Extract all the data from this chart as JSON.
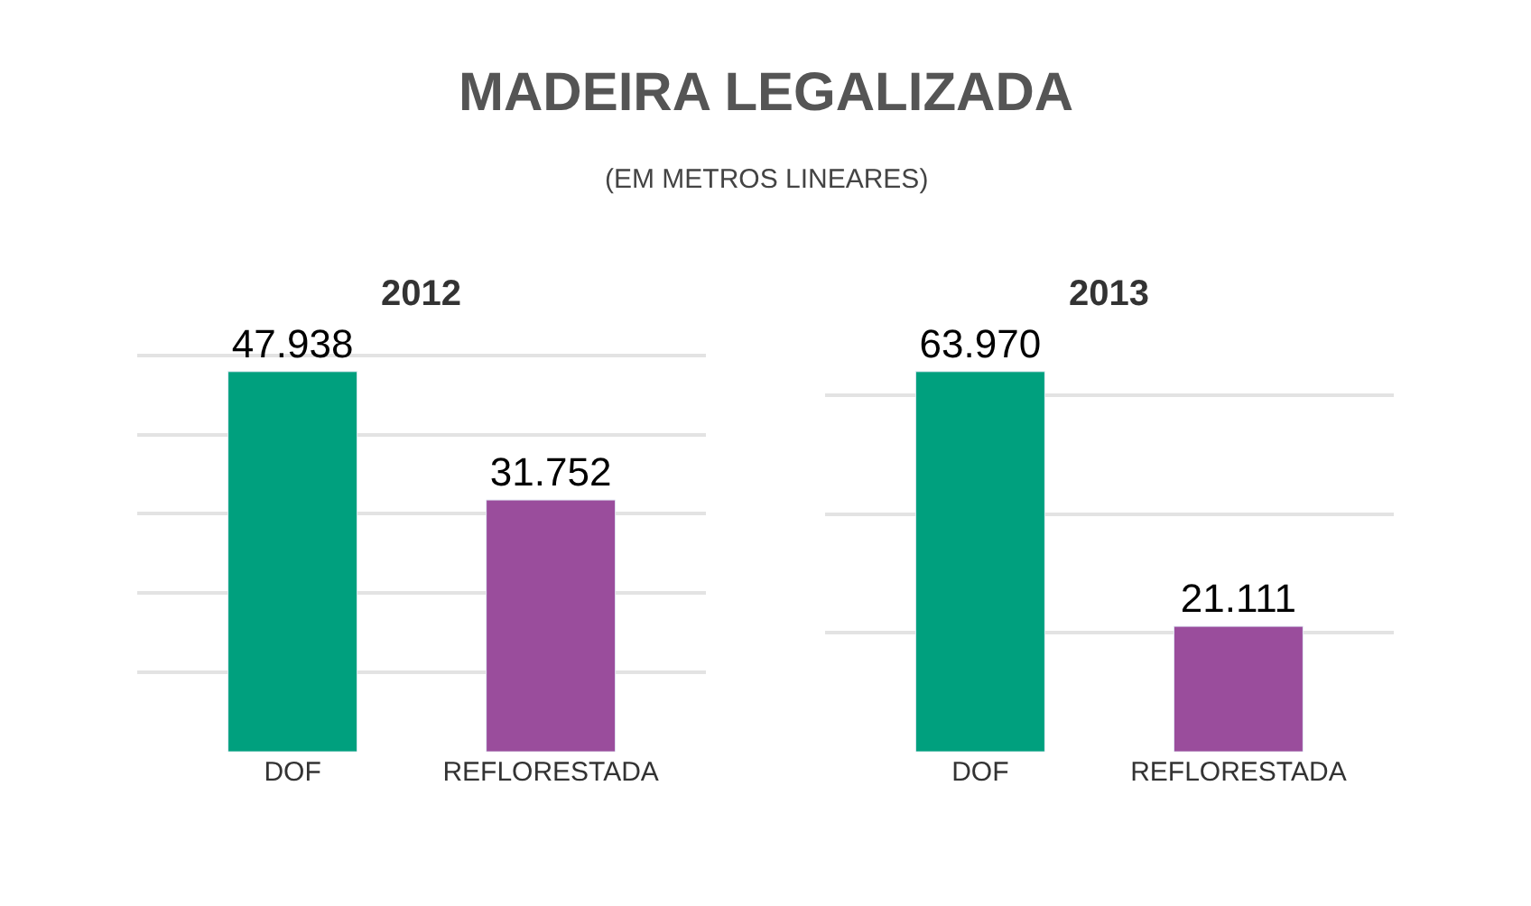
{
  "chart_data": [
    {
      "type": "bar",
      "title": "2012",
      "annotations": [
        "MADEIRA LEGALIZADA",
        "(EM METROS LINEARES)"
      ],
      "categories": [
        "DOF",
        "REFLORESTADA"
      ],
      "values": [
        47938,
        31752
      ],
      "colors": [
        "#00a07e",
        "#9a4d9c"
      ],
      "value_labels": [
        "47.938",
        "31.752"
      ],
      "grid": "y",
      "tick_labels": "x"
    },
    {
      "type": "bar",
      "title": "2013",
      "categories": [
        "DOF",
        "REFLORESTADA"
      ],
      "values": [
        63970,
        21111
      ],
      "colors": [
        "#00a07e",
        "#9a4d9c"
      ],
      "value_labels": [
        "63.970",
        "21.111"
      ],
      "grid": "y",
      "tick_labels": "x"
    }
  ]
}
